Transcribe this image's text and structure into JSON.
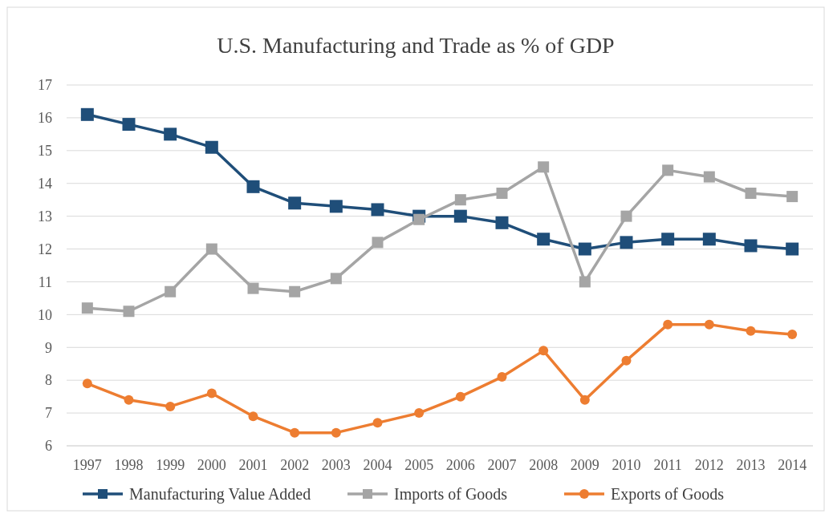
{
  "chart_data": {
    "type": "line",
    "title": "U.S. Manufacturing and Trade as % of GDP",
    "categories": [
      "1997",
      "1998",
      "1999",
      "2000",
      "2001",
      "2002",
      "2003",
      "2004",
      "2005",
      "2006",
      "2007",
      "2008",
      "2009",
      "2010",
      "2011",
      "2012",
      "2013",
      "2014"
    ],
    "series": [
      {
        "name": "Manufacturing Value Added",
        "color": "#1f4e79",
        "marker": "square",
        "values": [
          16.1,
          15.8,
          15.5,
          15.1,
          13.9,
          13.4,
          13.3,
          13.2,
          13.0,
          13.0,
          12.8,
          12.3,
          12.0,
          12.2,
          12.3,
          12.3,
          12.1,
          12.0
        ]
      },
      {
        "name": "Imports of Goods",
        "color": "#a5a5a5",
        "marker": "square",
        "values": [
          10.2,
          10.1,
          10.7,
          12.0,
          10.8,
          10.7,
          11.1,
          12.2,
          12.9,
          13.5,
          13.7,
          14.5,
          11.0,
          13.0,
          14.4,
          14.2,
          13.7,
          13.6
        ]
      },
      {
        "name": "Exports of Goods",
        "color": "#ed7d31",
        "marker": "circle",
        "values": [
          7.9,
          7.4,
          7.2,
          7.6,
          6.9,
          6.4,
          6.4,
          6.7,
          7.0,
          7.5,
          8.1,
          8.9,
          7.4,
          8.6,
          9.7,
          9.7,
          9.5,
          9.4
        ]
      }
    ],
    "ylim": [
      6,
      17
    ],
    "yticks": [
      6,
      7,
      8,
      9,
      10,
      11,
      12,
      13,
      14,
      15,
      16,
      17
    ],
    "grid": "y",
    "legend": "bottom"
  }
}
